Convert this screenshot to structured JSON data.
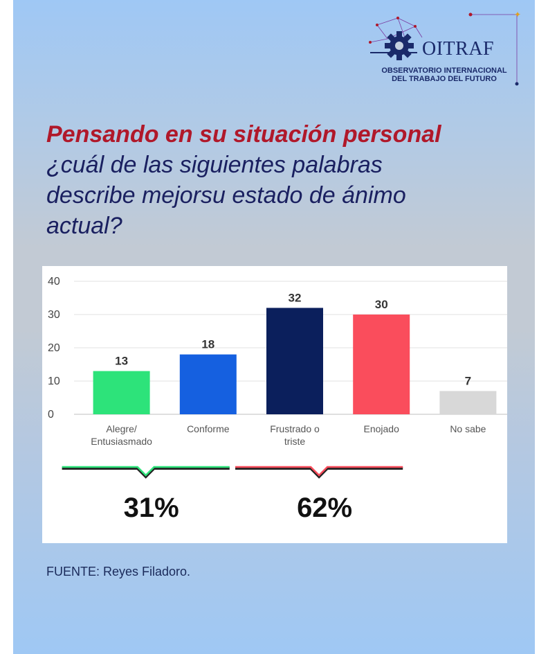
{
  "logo": {
    "name": "OITRAF",
    "subtitle_line1": "OBSERVATORIO INTERNACIONAL",
    "subtitle_line2": "DEL TRABAJO DEL FUTURO"
  },
  "title": {
    "highlight": "Pensando en su situación personal",
    "rest": "¿cuál de las siguientes palabras describe mejorsu estado de ánimo actual?"
  },
  "chart_data": {
    "type": "bar",
    "categories": [
      [
        "Alegre/",
        "Entusiasmado"
      ],
      [
        "Conforme"
      ],
      [
        "Frustrado o",
        "triste"
      ],
      [
        "Enojado"
      ],
      [
        "No sabe"
      ]
    ],
    "values": [
      13,
      18,
      32,
      30,
      7
    ],
    "colors": [
      "#2de37a",
      "#1560e0",
      "#0b1f5c",
      "#fa4d5c",
      "#d8d8d8"
    ],
    "ylim": [
      0,
      40
    ],
    "yticks": [
      0,
      10,
      20,
      30,
      40
    ],
    "grid": true,
    "groups": [
      {
        "label": "31%",
        "color": "#2de37a",
        "from_category": 0,
        "to_category": 1
      },
      {
        "label": "62%",
        "color": "#fa4d5c",
        "from_category": 2,
        "to_category": 3
      }
    ]
  },
  "source": "FUENTE: Reyes Filadoro."
}
